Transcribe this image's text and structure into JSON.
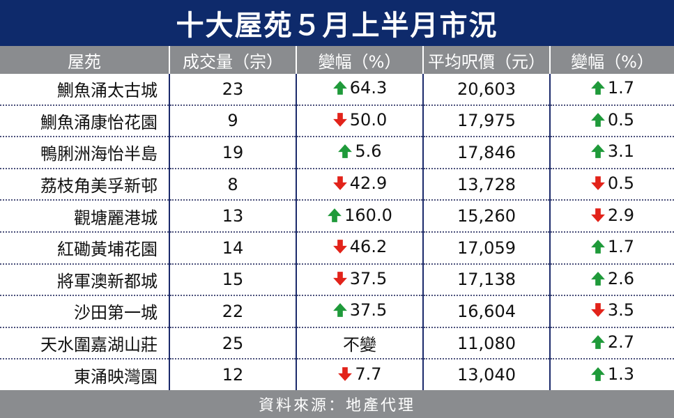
{
  "title": "十大屋苑５月上半月市況",
  "colors": {
    "title_bg": "#0e2a6b",
    "header_bg": "#8a8c8f",
    "up": "#1f9a3a",
    "down": "#e2231a"
  },
  "columns": [
    "屋苑",
    "成交量（宗）",
    "變幅（%）",
    "平均呎價（元）",
    "變幅（%）"
  ],
  "rows": [
    {
      "estate": "鰂魚涌太古城",
      "volume": "23",
      "vol_dir": "up",
      "vol_change": "64.3",
      "price": "20,603",
      "price_dir": "up",
      "price_change": "1.7"
    },
    {
      "estate": "鰂魚涌康怡花園",
      "volume": "9",
      "vol_dir": "down",
      "vol_change": "50.0",
      "price": "17,975",
      "price_dir": "up",
      "price_change": "0.5"
    },
    {
      "estate": "鴨脷洲海怡半島",
      "volume": "19",
      "vol_dir": "up",
      "vol_change": "5.6",
      "price": "17,846",
      "price_dir": "up",
      "price_change": "3.1"
    },
    {
      "estate": "荔枝角美孚新邨",
      "volume": "8",
      "vol_dir": "down",
      "vol_change": "42.9",
      "price": "13,728",
      "price_dir": "down",
      "price_change": "0.5"
    },
    {
      "estate": "觀塘麗港城",
      "volume": "13",
      "vol_dir": "up",
      "vol_change": "160.0",
      "price": "15,260",
      "price_dir": "down",
      "price_change": "2.9"
    },
    {
      "estate": "紅磡黃埔花園",
      "volume": "14",
      "vol_dir": "down",
      "vol_change": "46.2",
      "price": "17,059",
      "price_dir": "up",
      "price_change": "1.7"
    },
    {
      "estate": "將軍澳新都城",
      "volume": "15",
      "vol_dir": "down",
      "vol_change": "37.5",
      "price": "17,138",
      "price_dir": "up",
      "price_change": "2.6"
    },
    {
      "estate": "沙田第一城",
      "volume": "22",
      "vol_dir": "up",
      "vol_change": "37.5",
      "price": "16,604",
      "price_dir": "down",
      "price_change": "3.5"
    },
    {
      "estate": "天水圍嘉湖山莊",
      "volume": "25",
      "vol_dir": "none",
      "vol_change": "不變",
      "price": "11,080",
      "price_dir": "up",
      "price_change": "2.7"
    },
    {
      "estate": "東涌映灣園",
      "volume": "12",
      "vol_dir": "down",
      "vol_change": "7.7",
      "price": "13,040",
      "price_dir": "up",
      "price_change": "1.3"
    }
  ],
  "source": "資料來源：地產代理"
}
